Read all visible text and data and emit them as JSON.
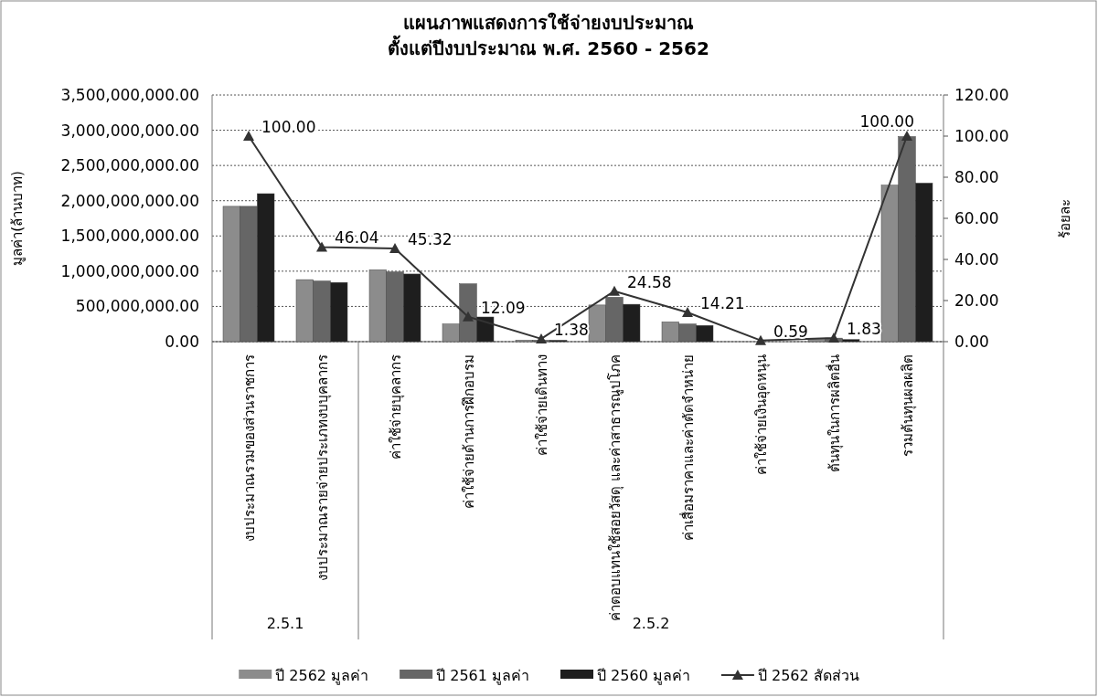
{
  "chart_data": {
    "type": "bar",
    "title": "แผนภาพแสดงการใช้จ่ายงบประมาณ\nตั้งแต่ปีงบประมาณ พ.ศ. 2560 - 2562",
    "ylabel": "มูลค่า(ล้านบาท)",
    "y2label": "ร้อยละ",
    "categories": [
      "งบประมาณรวมของส่วนราชการ",
      "งบประมาณรายจ่ายประเภทงบบุคลากร",
      "ค่าใช้จ่ายบุคลากร",
      "ค่าใช้จ่ายด้านการฝึกอบรม",
      "ค่าใช้จ่ายเดินทาง",
      "ค่าตอบแทนใช้สอยวัสดุ และค่าสาธารณูปโภค",
      "ค่าเสื่อมราคาและค่าตัดจำหน่าย",
      "ค่าใช้จ่ายเงินอุดหนุน",
      "ต้นทุนในการผลิตอื่น",
      "รวมต้นทุนผลผลิต"
    ],
    "series": [
      {
        "name": "ปี 2562 มูลค่า",
        "color": "#8c8c8c",
        "values": [
          1920000000,
          880000000,
          1020000000,
          250000000,
          20000000,
          520000000,
          280000000,
          null,
          30000000,
          2220000000
        ]
      },
      {
        "name": "ปี 2561 มูลค่า",
        "color": "#666666",
        "values": [
          1920000000,
          860000000,
          990000000,
          820000000,
          20000000,
          630000000,
          250000000,
          null,
          50000000,
          2910000000
        ]
      },
      {
        "name": "ปี 2560 มูลค่า",
        "color": "#1e1e1e",
        "values": [
          2100000000,
          840000000,
          960000000,
          350000000,
          20000000,
          530000000,
          230000000,
          null,
          30000000,
          2250000000
        ]
      },
      {
        "name": "ปี 2562 สัดส่วน",
        "type": "line",
        "axis": "y2",
        "color": "#333333",
        "marker": "triangle",
        "values": [
          100,
          46.04,
          45.32,
          12.09,
          1.38,
          24.58,
          14.21,
          0.59,
          1.83,
          100
        ],
        "value_labels": [
          "100.00",
          "46.04",
          "45.32",
          "12.09",
          "1.38",
          "24.58",
          "14.21",
          "0.59",
          "1.83",
          "100.00"
        ]
      }
    ],
    "ylim": [
      0,
      3500000000
    ],
    "yticks": [
      {
        "value": 0,
        "label": "0.00"
      },
      {
        "value": 500000000,
        "label": "500,000,000.00"
      },
      {
        "value": 1000000000,
        "label": "1,000,000,000.00"
      },
      {
        "value": 1500000000,
        "label": "1,500,000,000.00"
      },
      {
        "value": 2000000000,
        "label": "2,000,000,000.00"
      },
      {
        "value": 2500000000,
        "label": "2,500,000,000.00"
      },
      {
        "value": 3000000000,
        "label": "3,000,000,000.00"
      },
      {
        "value": 3500000000,
        "label": "3,500,000,000.00"
      }
    ],
    "y2lim": [
      0,
      120
    ],
    "y2ticks": [
      {
        "value": 0,
        "label": "0.00"
      },
      {
        "value": 20,
        "label": "20.00"
      },
      {
        "value": 40,
        "label": "40.00"
      },
      {
        "value": 60,
        "label": "60.00"
      },
      {
        "value": 80,
        "label": "80.00"
      },
      {
        "value": 100,
        "label": "100.00"
      },
      {
        "value": 120,
        "label": "120.00"
      }
    ],
    "grid": "y",
    "legend": "bottom",
    "annotations": [
      "2.5.1",
      "2.5.2"
    ]
  }
}
